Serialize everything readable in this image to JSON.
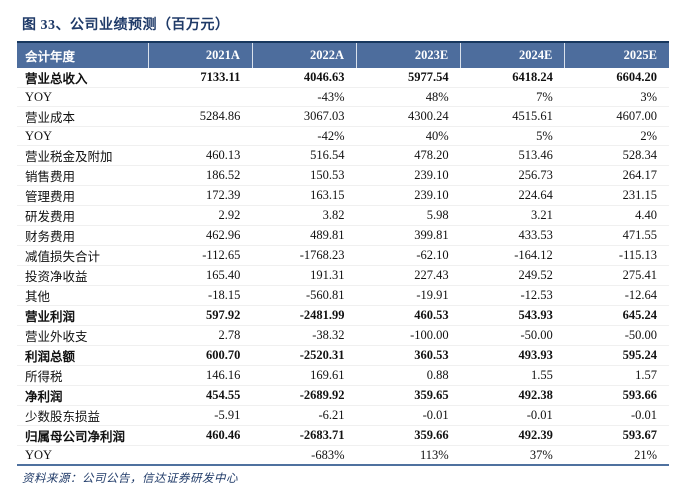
{
  "title": "图 33、公司业绩预测（百万元）",
  "source_note": "资料来源：公司公告，信达证券研发中心",
  "colors": {
    "header_bg": "#4d6d9d",
    "header_text": "#ffffff",
    "title_text": "#1f3a68",
    "table_top_border": "#17375e",
    "table_bottom_border": "#4f719f"
  },
  "chart_data": {
    "type": "table",
    "columns": [
      "会计年度",
      "2021A",
      "2022A",
      "2023E",
      "2024E",
      "2025E"
    ],
    "rows": [
      {
        "label": "营业总收入",
        "values": [
          "7133.11",
          "4046.63",
          "5977.54",
          "6418.24",
          "6604.20"
        ],
        "bold": true
      },
      {
        "label": "YOY",
        "values": [
          "",
          "-43%",
          "48%",
          "7%",
          "3%"
        ],
        "bold": false
      },
      {
        "label": "营业成本",
        "values": [
          "5284.86",
          "3067.03",
          "4300.24",
          "4515.61",
          "4607.00"
        ],
        "bold": false
      },
      {
        "label": "YOY",
        "values": [
          "",
          "-42%",
          "40%",
          "5%",
          "2%"
        ],
        "bold": false
      },
      {
        "label": "营业税金及附加",
        "values": [
          "460.13",
          "516.54",
          "478.20",
          "513.46",
          "528.34"
        ],
        "bold": false
      },
      {
        "label": "销售费用",
        "values": [
          "186.52",
          "150.53",
          "239.10",
          "256.73",
          "264.17"
        ],
        "bold": false
      },
      {
        "label": "管理费用",
        "values": [
          "172.39",
          "163.15",
          "239.10",
          "224.64",
          "231.15"
        ],
        "bold": false
      },
      {
        "label": "研发费用",
        "values": [
          "2.92",
          "3.82",
          "5.98",
          "3.21",
          "4.40"
        ],
        "bold": false
      },
      {
        "label": "财务费用",
        "values": [
          "462.96",
          "489.81",
          "399.81",
          "433.53",
          "471.55"
        ],
        "bold": false
      },
      {
        "label": "减值损失合计",
        "values": [
          "-112.65",
          "-1768.23",
          "-62.10",
          "-164.12",
          "-115.13"
        ],
        "bold": false
      },
      {
        "label": "投资净收益",
        "values": [
          "165.40",
          "191.31",
          "227.43",
          "249.52",
          "275.41"
        ],
        "bold": false
      },
      {
        "label": "其他",
        "values": [
          "-18.15",
          "-560.81",
          "-19.91",
          "-12.53",
          "-12.64"
        ],
        "bold": false
      },
      {
        "label": "营业利润",
        "values": [
          "597.92",
          "-2481.99",
          "460.53",
          "543.93",
          "645.24"
        ],
        "bold": true
      },
      {
        "label": "营业外收支",
        "values": [
          "2.78",
          "-38.32",
          "-100.00",
          "-50.00",
          "-50.00"
        ],
        "bold": false
      },
      {
        "label": "利润总额",
        "values": [
          "600.70",
          "-2520.31",
          "360.53",
          "493.93",
          "595.24"
        ],
        "bold": true
      },
      {
        "label": "所得税",
        "values": [
          "146.16",
          "169.61",
          "0.88",
          "1.55",
          "1.57"
        ],
        "bold": false
      },
      {
        "label": "净利润",
        "values": [
          "454.55",
          "-2689.92",
          "359.65",
          "492.38",
          "593.66"
        ],
        "bold": true
      },
      {
        "label": "少数股东损益",
        "values": [
          "-5.91",
          "-6.21",
          "-0.01",
          "-0.01",
          "-0.01"
        ],
        "bold": false
      },
      {
        "label": "归属母公司净利润",
        "values": [
          "460.46",
          "-2683.71",
          "359.66",
          "492.39",
          "593.67"
        ],
        "bold": true
      },
      {
        "label": "YOY",
        "values": [
          "",
          "-683%",
          "113%",
          "37%",
          "21%"
        ],
        "bold": false
      }
    ]
  }
}
